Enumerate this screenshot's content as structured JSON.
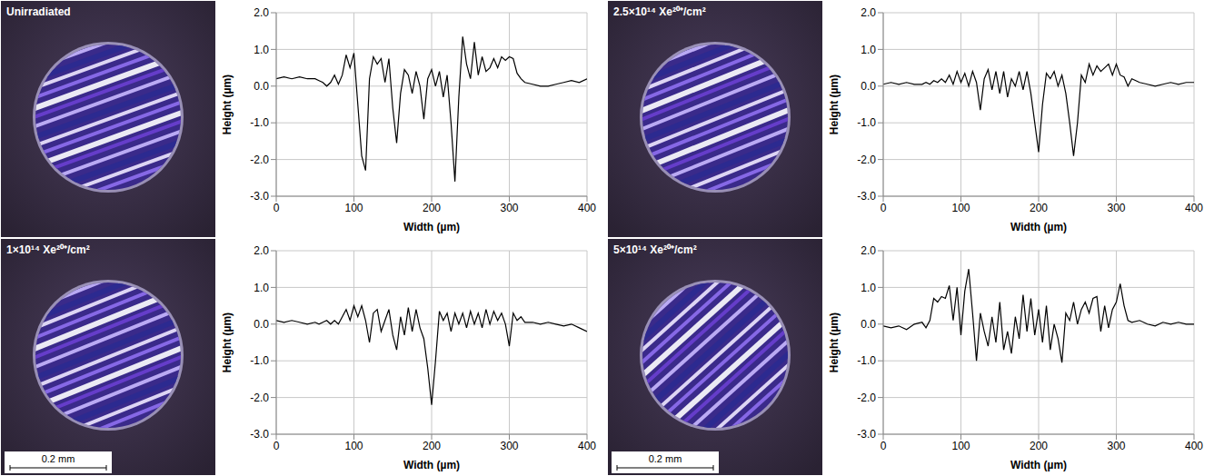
{
  "images": [
    {
      "label": "Unirradiated"
    },
    {
      "label": "1×10¹⁴ Xe²⁰⁺/cm²",
      "scale_bar": "0.2 mm"
    },
    {
      "label": "2.5×10¹⁴ Xe²⁰⁺/cm²"
    },
    {
      "label": "5×10¹⁴ Xe²⁰⁺/cm²",
      "scale_bar": "0.2 mm"
    }
  ],
  "chart_data": [
    {
      "type": "line",
      "xlabel": "Width (µm)",
      "ylabel": "Height (µm)",
      "xlim": [
        0,
        400
      ],
      "xticks": [
        0,
        100,
        200,
        300,
        400
      ],
      "ylim": [
        -3,
        2
      ],
      "yticks": [
        {
          "value": -3,
          "label": "-3.0"
        },
        {
          "value": -2,
          "label": "-2.0"
        },
        {
          "value": -1,
          "label": "-1.0"
        },
        {
          "value": 0,
          "label": "0.0"
        },
        {
          "value": 1,
          "label": "1.0"
        },
        {
          "value": 2,
          "label": "2.0"
        }
      ],
      "grid": true,
      "color": "#000000",
      "x": [
        0,
        10,
        20,
        30,
        40,
        50,
        55,
        60,
        65,
        70,
        75,
        80,
        85,
        90,
        95,
        100,
        105,
        110,
        115,
        120,
        125,
        130,
        135,
        140,
        145,
        150,
        155,
        160,
        165,
        170,
        175,
        180,
        185,
        190,
        195,
        200,
        205,
        210,
        215,
        220,
        225,
        230,
        235,
        240,
        245,
        250,
        255,
        260,
        265,
        270,
        275,
        280,
        285,
        290,
        295,
        300,
        305,
        310,
        315,
        320,
        330,
        340,
        350,
        360,
        370,
        380,
        390,
        400
      ],
      "values": [
        0.2,
        0.25,
        0.2,
        0.25,
        0.2,
        0.2,
        0.15,
        0.1,
        0.0,
        0.1,
        0.3,
        0.05,
        0.3,
        0.85,
        0.5,
        0.9,
        -0.5,
        -1.9,
        -2.3,
        0.2,
        0.8,
        0.6,
        0.75,
        0.1,
        0.75,
        -0.6,
        -1.55,
        -0.2,
        0.45,
        0.3,
        -0.2,
        0.4,
        0.0,
        -0.9,
        0.2,
        0.45,
        0.0,
        0.4,
        -0.3,
        0.3,
        -1.0,
        -2.6,
        -0.3,
        1.35,
        0.6,
        0.2,
        1.2,
        0.3,
        0.8,
        0.4,
        0.5,
        0.75,
        0.5,
        0.8,
        0.7,
        0.8,
        0.75,
        0.35,
        0.2,
        0.1,
        0.05,
        0.0,
        0.0,
        0.05,
        0.1,
        0.15,
        0.1,
        0.2
      ]
    },
    {
      "type": "line",
      "xlabel": "Width (µm)",
      "ylabel": "Height (µm)",
      "xlim": [
        0,
        400
      ],
      "xticks": [
        0,
        100,
        200,
        300,
        400
      ],
      "ylim": [
        -3,
        2
      ],
      "yticks": [
        {
          "value": -3,
          "label": "-3.0"
        },
        {
          "value": -2,
          "label": "-2.0"
        },
        {
          "value": -1,
          "label": "-1.0"
        },
        {
          "value": 0,
          "label": "0.0"
        },
        {
          "value": 1,
          "label": "1.0"
        },
        {
          "value": 2,
          "label": "2.0"
        }
      ],
      "grid": true,
      "color": "#000000",
      "x": [
        0,
        10,
        20,
        30,
        40,
        50,
        55,
        60,
        65,
        70,
        75,
        80,
        85,
        90,
        95,
        100,
        105,
        110,
        115,
        120,
        125,
        130,
        135,
        140,
        145,
        150,
        155,
        160,
        165,
        170,
        175,
        180,
        185,
        190,
        195,
        200,
        205,
        210,
        215,
        220,
        225,
        230,
        235,
        240,
        245,
        250,
        255,
        260,
        265,
        270,
        275,
        280,
        285,
        290,
        295,
        300,
        305,
        310,
        315,
        320,
        330,
        340,
        350,
        360,
        370,
        380,
        390,
        400
      ],
      "values": [
        0.1,
        0.05,
        0.1,
        0.05,
        0.0,
        0.05,
        0.0,
        0.05,
        0.1,
        0.0,
        0.1,
        0.0,
        0.2,
        0.4,
        0.1,
        0.5,
        0.2,
        0.5,
        0.1,
        -0.5,
        0.3,
        0.4,
        -0.2,
        0.1,
        0.4,
        -0.3,
        -0.7,
        0.2,
        -0.3,
        0.45,
        -0.2,
        0.4,
        -0.1,
        -0.4,
        -1.2,
        -2.2,
        -1.0,
        0.35,
        0.1,
        0.3,
        -0.2,
        0.3,
        0.0,
        0.3,
        -0.1,
        0.35,
        0.0,
        0.3,
        -0.1,
        0.4,
        0.0,
        0.35,
        0.1,
        0.3,
        0.0,
        -0.6,
        0.3,
        0.1,
        0.2,
        0.05,
        0.05,
        0.0,
        0.05,
        0.0,
        -0.05,
        0.0,
        -0.1,
        -0.2
      ]
    },
    {
      "type": "line",
      "xlabel": "Width (µm)",
      "ylabel": "Height (µm)",
      "xlim": [
        0,
        400
      ],
      "xticks": [
        0,
        100,
        200,
        300,
        400
      ],
      "ylim": [
        -3,
        2
      ],
      "yticks": [
        {
          "value": -3,
          "label": "-3.0"
        },
        {
          "value": -2,
          "label": "-2.0"
        },
        {
          "value": -1,
          "label": "-1.0"
        },
        {
          "value": 0,
          "label": "0.0"
        },
        {
          "value": 1,
          "label": "1.0"
        },
        {
          "value": 2,
          "label": "2.0"
        }
      ],
      "grid": true,
      "color": "#000000",
      "x": [
        0,
        10,
        20,
        30,
        40,
        50,
        55,
        60,
        65,
        70,
        75,
        80,
        85,
        90,
        95,
        100,
        105,
        110,
        115,
        120,
        125,
        130,
        135,
        140,
        145,
        150,
        155,
        160,
        165,
        170,
        175,
        180,
        185,
        190,
        195,
        200,
        205,
        210,
        215,
        220,
        225,
        230,
        235,
        240,
        245,
        250,
        255,
        260,
        265,
        270,
        275,
        280,
        285,
        290,
        295,
        300,
        305,
        310,
        315,
        320,
        330,
        340,
        350,
        360,
        370,
        380,
        390,
        400
      ],
      "values": [
        0.05,
        0.1,
        0.05,
        0.1,
        0.05,
        0.05,
        0.1,
        0.05,
        0.15,
        0.1,
        0.2,
        0.1,
        0.3,
        0.05,
        0.4,
        0.1,
        0.35,
        0.0,
        0.4,
        0.1,
        -0.65,
        0.2,
        0.45,
        -0.1,
        0.4,
        -0.2,
        0.4,
        -0.3,
        0.2,
        0.0,
        0.4,
        -0.1,
        0.4,
        -0.2,
        -1.0,
        -1.8,
        -0.5,
        0.35,
        0.2,
        0.4,
        0.0,
        0.3,
        -0.2,
        -1.0,
        -1.9,
        -1.0,
        0.3,
        0.1,
        0.6,
        0.3,
        0.55,
        0.4,
        0.5,
        0.6,
        0.3,
        0.6,
        0.3,
        0.25,
        0.0,
        0.2,
        0.1,
        0.05,
        0.0,
        0.05,
        0.1,
        0.05,
        0.1,
        0.1
      ]
    },
    {
      "type": "line",
      "xlabel": "Width (µm)",
      "ylabel": "Height (µm)",
      "xlim": [
        0,
        400
      ],
      "xticks": [
        0,
        100,
        200,
        300,
        400
      ],
      "ylim": [
        -3,
        2
      ],
      "yticks": [
        {
          "value": -3,
          "label": "-3.0"
        },
        {
          "value": -2,
          "label": "-2.0"
        },
        {
          "value": -1,
          "label": "-1.0"
        },
        {
          "value": 0,
          "label": "0.0"
        },
        {
          "value": 1,
          "label": "1.0"
        },
        {
          "value": 2,
          "label": "2.0"
        }
      ],
      "grid": true,
      "color": "#000000",
      "x": [
        0,
        10,
        20,
        30,
        40,
        50,
        55,
        60,
        65,
        70,
        75,
        80,
        85,
        90,
        95,
        100,
        105,
        110,
        115,
        120,
        125,
        130,
        135,
        140,
        145,
        150,
        155,
        160,
        165,
        170,
        175,
        180,
        185,
        190,
        195,
        200,
        205,
        210,
        215,
        220,
        225,
        230,
        235,
        240,
        245,
        250,
        255,
        260,
        265,
        270,
        275,
        280,
        285,
        290,
        295,
        300,
        305,
        310,
        315,
        320,
        330,
        340,
        350,
        360,
        370,
        380,
        390,
        400
      ],
      "values": [
        -0.05,
        -0.1,
        -0.05,
        -0.15,
        0.0,
        0.05,
        -0.1,
        0.1,
        0.7,
        0.6,
        0.75,
        0.7,
        1.05,
        0.1,
        1.0,
        -0.3,
        0.9,
        1.5,
        0.3,
        -1.0,
        0.3,
        -0.2,
        -0.6,
        0.2,
        -0.5,
        0.6,
        -0.7,
        -0.2,
        -0.8,
        0.2,
        -0.4,
        0.8,
        -0.2,
        0.7,
        -0.3,
        0.4,
        -0.5,
        0.5,
        -0.7,
        0.0,
        -0.4,
        -1.05,
        0.3,
        0.1,
        0.6,
        0.0,
        0.4,
        0.6,
        0.3,
        0.7,
        0.75,
        -0.2,
        0.5,
        -0.1,
        0.4,
        0.6,
        1.1,
        0.5,
        0.1,
        0.05,
        0.1,
        0.0,
        -0.05,
        0.05,
        0.0,
        0.05,
        0.0,
        0.0
      ]
    }
  ]
}
